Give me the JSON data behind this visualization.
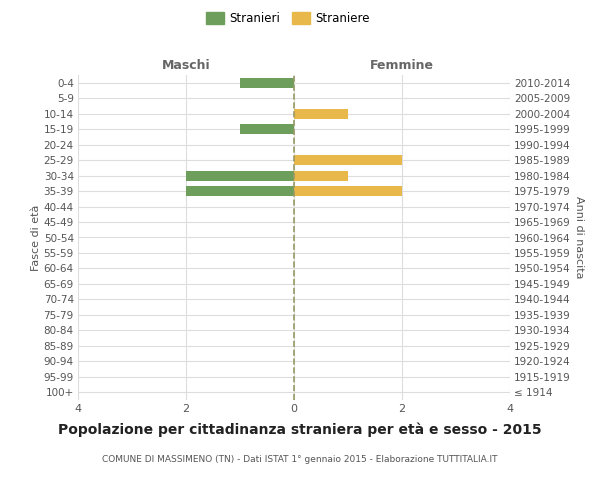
{
  "age_groups": [
    "100+",
    "95-99",
    "90-94",
    "85-89",
    "80-84",
    "75-79",
    "70-74",
    "65-69",
    "60-64",
    "55-59",
    "50-54",
    "45-49",
    "40-44",
    "35-39",
    "30-34",
    "25-29",
    "20-24",
    "15-19",
    "10-14",
    "5-9",
    "0-4"
  ],
  "birth_years": [
    "≤ 1914",
    "1915-1919",
    "1920-1924",
    "1925-1929",
    "1930-1934",
    "1935-1939",
    "1940-1944",
    "1945-1949",
    "1950-1954",
    "1955-1959",
    "1960-1964",
    "1965-1969",
    "1970-1974",
    "1975-1979",
    "1980-1984",
    "1985-1989",
    "1990-1994",
    "1995-1999",
    "2000-2004",
    "2005-2009",
    "2010-2014"
  ],
  "maschi": [
    0,
    0,
    0,
    0,
    0,
    0,
    0,
    0,
    0,
    0,
    0,
    0,
    0,
    2,
    2,
    0,
    0,
    1,
    0,
    0,
    1
  ],
  "femmine": [
    0,
    0,
    0,
    0,
    0,
    0,
    0,
    0,
    0,
    0,
    0,
    0,
    0,
    2,
    1,
    2,
    0,
    0,
    1,
    0,
    0
  ],
  "maschi_color": "#6d9e5b",
  "femmine_color": "#e8b84b",
  "title": "Popolazione per cittadinanza straniera per età e sesso - 2015",
  "subtitle": "COMUNE DI MASSIMENO (TN) - Dati ISTAT 1° gennaio 2015 - Elaborazione TUTTITALIA.IT",
  "ylabel_left": "Fasce di età",
  "ylabel_right": "Anni di nascita",
  "xlabel_left": "Maschi",
  "xlabel_right": "Femmine",
  "legend_stranieri": "Stranieri",
  "legend_straniere": "Straniere",
  "xlim": 4,
  "background_color": "#ffffff",
  "grid_color": "#dddddd",
  "zero_line_color": "#999966"
}
